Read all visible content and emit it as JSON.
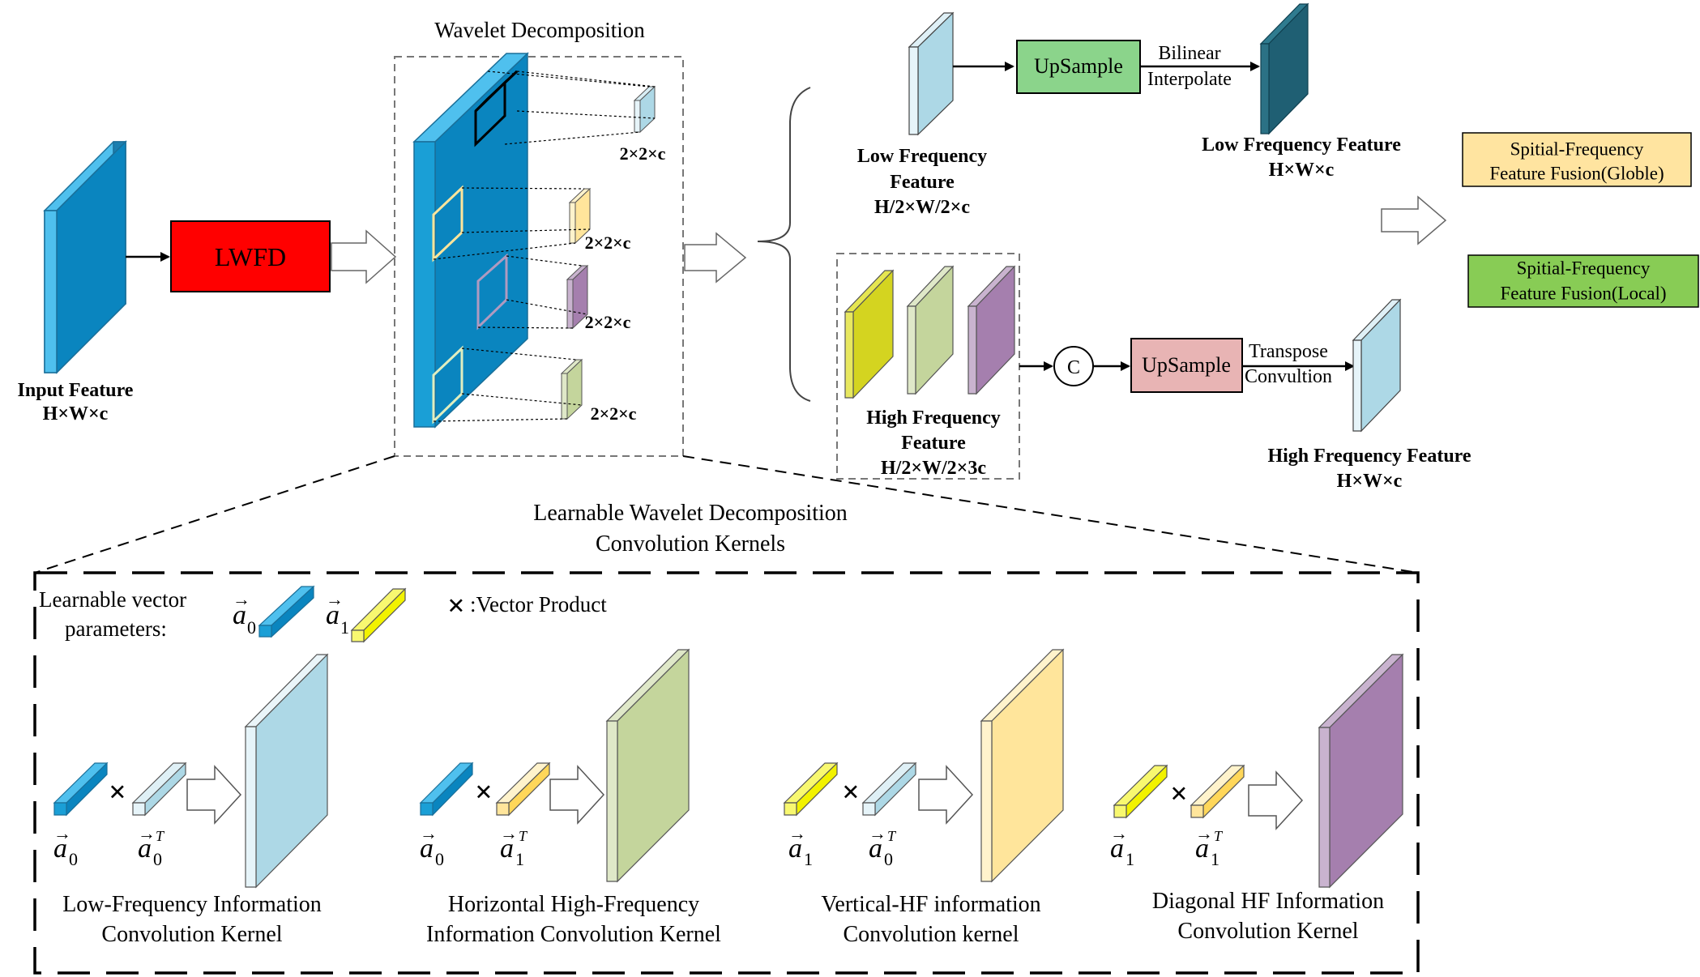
{
  "colors": {
    "deep_blue": "#0a85bf",
    "deep_blue_top": "#4fc0ee",
    "light_blue": "#add8e6",
    "light_yellow": "#ffe59b",
    "light_purple": "#a57fae",
    "light_green": "#c4d59c",
    "yellow_green": "#d4d420",
    "lwfd_red": "#ff0000",
    "upsample_green": "#8bd48b",
    "upsample_pink": "#e8b4b4",
    "dark_teal": "#1f5f73",
    "fusion_global_bg": "#ffe4a0",
    "fusion_local_bg": "#88cc55",
    "bright_yellow": "#f2f200"
  },
  "input": {
    "label": "Input Feature",
    "dims": "H×W×c"
  },
  "lwfd": {
    "label": "LWFD"
  },
  "wavelet": {
    "title": "Wavelet Decomposition",
    "sub_dims": [
      "2×2×c",
      "2×2×c",
      "2×2×c",
      "2×2×c"
    ]
  },
  "low_freq_in": {
    "label_line1": "Low Frequency",
    "label_line2": "Feature",
    "dims": "H/2×W/2×c"
  },
  "upsample_low": {
    "label": "UpSample",
    "method_line1": "Bilinear",
    "method_line2": "Interpolate"
  },
  "low_freq_out": {
    "label": "Low Frequency Feature",
    "dims": "H×W×c"
  },
  "high_freq_in": {
    "label_line1": "High Frequency",
    "label_line2": "Feature",
    "dims": "H/2×W/2×3c"
  },
  "concat": {
    "symbol": "C"
  },
  "upsample_high": {
    "label": "UpSample",
    "method_line1": "Transpose",
    "method_line2": "Convultion"
  },
  "high_freq_out": {
    "label": "High Frequency Feature",
    "dims": "H×W×c"
  },
  "fusion": {
    "global_line1": "Spitial-Frequency",
    "global_line2": "Feature Fusion(Globle)",
    "local_line1": "Spitial-Frequency",
    "local_line2": "Feature Fusion(Local)"
  },
  "kernels_section": {
    "title_line1": "Learnable Wavelet Decomposition",
    "title_line2": "Convolution Kernels",
    "params_line1": "Learnable vector",
    "params_line2": "parameters:",
    "a0": "a",
    "a1": "a",
    "sub0": "0",
    "sub1": "1",
    "sup_t": "T",
    "cross": "×",
    "vector_product": ":Vector Product"
  },
  "kernels": [
    {
      "label_line1": "Low-Frequency Information",
      "label_line2": "Convolution Kernel"
    },
    {
      "label_line1": "Horizontal High-Frequency",
      "label_line2": "Information Convolution Kernel"
    },
    {
      "label_line1": "Vertical-HF information",
      "label_line2": "Convolution kernel"
    },
    {
      "label_line1": "Diagonal HF Information",
      "label_line2": "Convolution Kernel"
    }
  ]
}
